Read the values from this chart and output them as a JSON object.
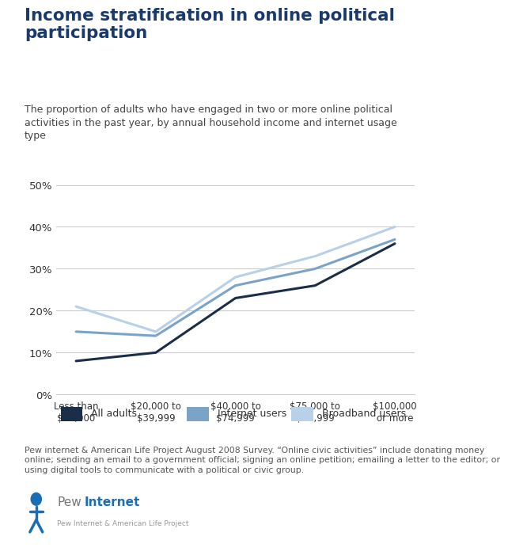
{
  "title": "Income stratification in online political\nparticipation",
  "subtitle": "The proportion of adults who have engaged in two or more online political\nactivities in the past year, by annual household income and internet usage\ntype",
  "categories": [
    "Less than\n$20,000",
    "$20,000 to\n$39,999",
    "$40,000 to\n$74,999",
    "$75,000 to\n$99,999",
    "$100,000\nor more"
  ],
  "x_positions": [
    0,
    1,
    2,
    3,
    4
  ],
  "all_adults": [
    0.08,
    0.1,
    0.23,
    0.26,
    0.36
  ],
  "internet_users": [
    0.15,
    0.14,
    0.26,
    0.3,
    0.37
  ],
  "broadband_users": [
    0.21,
    0.15,
    0.28,
    0.33,
    0.4
  ],
  "color_all_adults": "#1a2e4a",
  "color_internet_users": "#7ba3c8",
  "color_broadband_users": "#b8d0e8",
  "title_color": "#1a3a6b",
  "subtitle_color": "#444444",
  "background_color": "#ffffff",
  "ylim": [
    0,
    0.55
  ],
  "yticks": [
    0,
    0.1,
    0.2,
    0.3,
    0.4,
    0.5
  ],
  "footnote": "Pew internet & American Life Project August 2008 Survey. “Online civic activities” include donating money\nonline; sending an email to a government official; signing an online petition; emailing a letter to the editor; or\nusing digital tools to communicate with a political or civic group.",
  "legend_labels": [
    "All adults",
    "Internet users",
    "Broadband users"
  ],
  "line_width": 2.2,
  "pew_blue": "#1a6eb5",
  "bottom_bar_color": "#5bc0de"
}
